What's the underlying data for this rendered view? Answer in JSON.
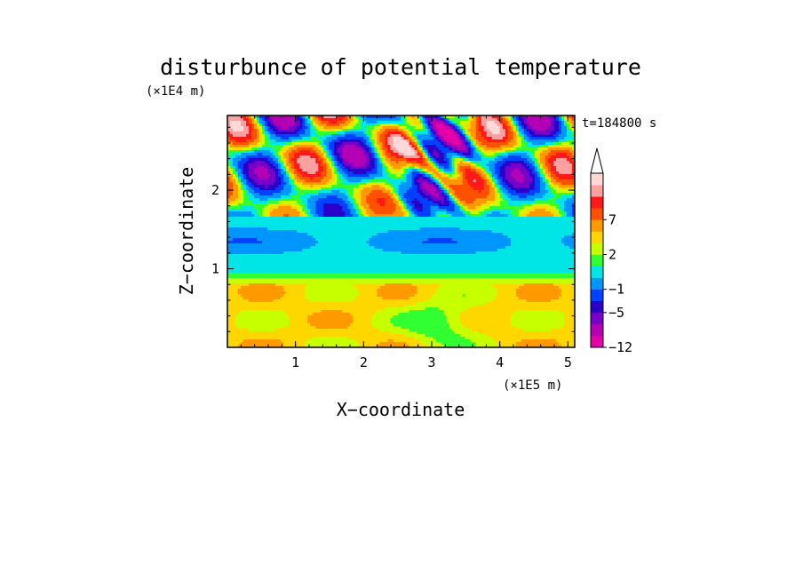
{
  "chart_data": {
    "type": "heatmap",
    "title": "disturbunce of potential temperature",
    "time_label": "t=184800 s",
    "xlabel": "X−coordinate",
    "ylabel": "Z−coordinate",
    "x_unit": "(×1E5 m)",
    "y_unit": "(×1E4 m)",
    "xlim": [
      0,
      5.1
    ],
    "ylim": [
      0,
      2.95
    ],
    "xticks": [
      1,
      2,
      3,
      4,
      5
    ],
    "xtick_labels": [
      "1",
      "2",
      "3",
      "4",
      "5"
    ],
    "yticks": [
      1,
      2
    ],
    "ytick_labels": [
      "1",
      "2"
    ],
    "grid": false,
    "colorbar": {
      "position": "right",
      "extend": "max",
      "levels": [
        -12,
        -9,
        -7,
        -5,
        -3,
        -1,
        0,
        1,
        2,
        3,
        5,
        7,
        9,
        11
      ],
      "labeled_ticks": [
        -12,
        -5,
        -1,
        2,
        7
      ],
      "tick_labels": [
        "−12",
        "−5",
        "−1",
        "2",
        "7"
      ],
      "colors": [
        "#e600a8",
        "#b400b4",
        "#7800c8",
        "#2a00c8",
        "#0040ff",
        "#0096ff",
        "#00e6e6",
        "#32ff32",
        "#c8ff00",
        "#ffd700",
        "#ff9900",
        "#ff5000",
        "#ff1a1a",
        "#ffa0a0",
        "#ffd8d8"
      ]
    }
  }
}
